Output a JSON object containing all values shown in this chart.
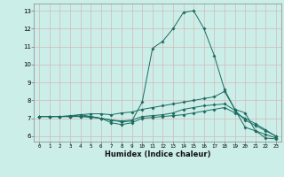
{
  "xlabel": "Humidex (Indice chaleur)",
  "bg_color": "#cceee9",
  "grid_color": "#d4b8b8",
  "line_color": "#1a6b60",
  "xlim": [
    -0.5,
    23.5
  ],
  "ylim": [
    5.7,
    13.4
  ],
  "yticks": [
    6,
    7,
    8,
    9,
    10,
    11,
    12,
    13
  ],
  "xticks": [
    0,
    1,
    2,
    3,
    4,
    5,
    6,
    7,
    8,
    9,
    10,
    11,
    12,
    13,
    14,
    15,
    16,
    17,
    18,
    19,
    20,
    21,
    22,
    23
  ],
  "series": [
    {
      "x": [
        0,
        1,
        2,
        3,
        4,
        5,
        6,
        7,
        8,
        9,
        10,
        11,
        12,
        13,
        14,
        15,
        16,
        17,
        18,
        19,
        20,
        21,
        22,
        23
      ],
      "y": [
        7.1,
        7.1,
        7.1,
        7.1,
        7.2,
        7.1,
        7.0,
        6.9,
        6.8,
        6.85,
        7.9,
        10.9,
        11.3,
        12.0,
        12.9,
        13.0,
        12.0,
        10.5,
        8.6,
        7.5,
        7.3,
        6.3,
        5.9,
        5.85
      ]
    },
    {
      "x": [
        0,
        1,
        2,
        3,
        4,
        5,
        6,
        7,
        8,
        9,
        10,
        11,
        12,
        13,
        14,
        15,
        16,
        17,
        18,
        19,
        20,
        21,
        22,
        23
      ],
      "y": [
        7.1,
        7.1,
        7.1,
        7.15,
        7.2,
        7.25,
        7.25,
        7.2,
        7.3,
        7.35,
        7.5,
        7.6,
        7.7,
        7.8,
        7.9,
        8.0,
        8.1,
        8.2,
        8.5,
        7.5,
        6.5,
        6.3,
        6.1,
        5.9
      ]
    },
    {
      "x": [
        0,
        1,
        2,
        3,
        4,
        5,
        6,
        7,
        8,
        9,
        10,
        11,
        12,
        13,
        14,
        15,
        16,
        17,
        18,
        19,
        20,
        21,
        22,
        23
      ],
      "y": [
        7.1,
        7.1,
        7.1,
        7.1,
        7.1,
        7.1,
        7.0,
        6.9,
        6.85,
        6.9,
        7.1,
        7.15,
        7.2,
        7.3,
        7.5,
        7.6,
        7.7,
        7.75,
        7.8,
        7.45,
        6.9,
        6.6,
        6.3,
        6.0
      ]
    },
    {
      "x": [
        0,
        1,
        2,
        3,
        4,
        5,
        6,
        7,
        8,
        9,
        10,
        11,
        12,
        13,
        14,
        15,
        16,
        17,
        18,
        19,
        20,
        21,
        22,
        23
      ],
      "y": [
        7.1,
        7.1,
        7.1,
        7.1,
        7.1,
        7.05,
        7.0,
        6.75,
        6.65,
        6.75,
        7.0,
        7.05,
        7.1,
        7.15,
        7.2,
        7.3,
        7.4,
        7.5,
        7.6,
        7.3,
        7.0,
        6.7,
        6.35,
        6.0
      ]
    }
  ]
}
